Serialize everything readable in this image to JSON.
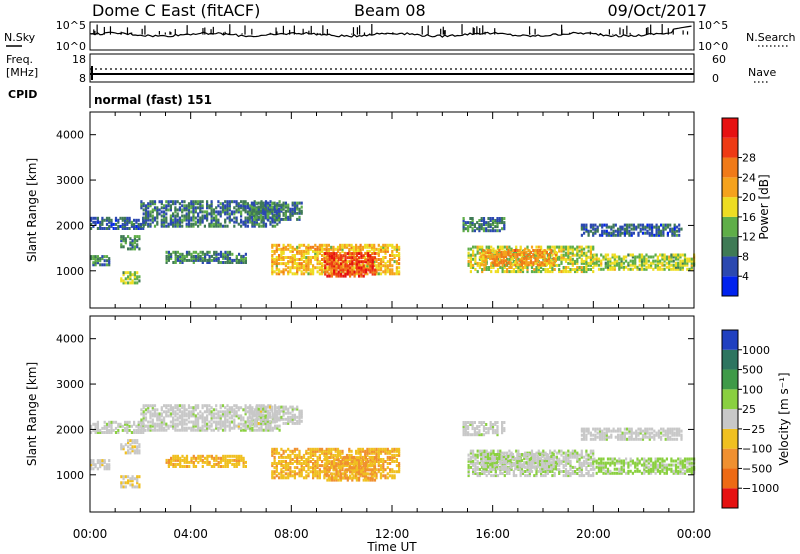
{
  "header": {
    "title": "Dome C East (fitACF)",
    "beam": "Beam 08",
    "date": "09/Oct/2017"
  },
  "nsky_panel": {
    "left_label": "N.Sky",
    "right_label": "N.Search",
    "left_ticks": [
      "10^5",
      "10^0"
    ],
    "right_ticks": [
      "10^5",
      "10^0"
    ]
  },
  "freq_panel": {
    "left_label_line1": "Freq.",
    "left_label_line2": "[MHz]",
    "right_label": "Nave",
    "left_ticks": [
      "18",
      "8"
    ],
    "right_ticks": [
      "60",
      "0"
    ]
  },
  "cpid_panel": {
    "label": "CPID",
    "value": "normal (fast) 151"
  },
  "x_axis": {
    "label": "Time UT",
    "ticks": [
      "00:00",
      "04:00",
      "08:00",
      "12:00",
      "16:00",
      "20:00",
      "00:00"
    ]
  },
  "y_axis": {
    "label": "Slant Range [km]",
    "ticks": [
      "1000",
      "2000",
      "3000",
      "4000"
    ]
  },
  "power_scale": {
    "label": "Power [dB]",
    "ticks": [
      "4",
      "8",
      "12",
      "16",
      "20",
      "24",
      "28"
    ],
    "colors": [
      "#0022ee",
      "#2b48b0",
      "#3f7a55",
      "#5fae48",
      "#eedd22",
      "#f5a21c",
      "#f07a18",
      "#ee3a14",
      "#e61111"
    ]
  },
  "velocity_scale": {
    "label": "Velocity [m s⁻¹]",
    "ticks": [
      "1000",
      "500",
      "100",
      "25",
      "−25",
      "−100",
      "−500",
      "−1000"
    ],
    "colors": [
      "#2040c0",
      "#2e7560",
      "#3f9a48",
      "#8ad040",
      "#c8c8c8",
      "#f0c020",
      "#f09030",
      "#ee6a14",
      "#e61111"
    ]
  },
  "chart_data": {
    "type": "heatmap",
    "x_range_hours": [
      0,
      24
    ],
    "y_range_km": [
      180,
      4500
    ],
    "power_db_range": [
      0,
      32
    ],
    "velocity_range": [
      -1200,
      1200
    ],
    "panels": [
      "Power [dB]",
      "Velocity [m s⁻¹]"
    ],
    "regions": [
      {
        "t0": 0.0,
        "t1": 2.2,
        "r0": 1900,
        "r1": 2150,
        "power": 7,
        "velocity": 20
      },
      {
        "t0": 1.2,
        "t1": 2.0,
        "r0": 1450,
        "r1": 1750,
        "power": 10,
        "velocity": -30
      },
      {
        "t0": 2.0,
        "t1": 7.5,
        "r0": 1950,
        "r1": 2500,
        "power": 8,
        "velocity": 15
      },
      {
        "t0": 0.0,
        "t1": 0.8,
        "r0": 1100,
        "r1": 1300,
        "power": 10,
        "velocity": -40
      },
      {
        "t0": 1.2,
        "t1": 2.0,
        "r0": 700,
        "r1": 950,
        "power": 14,
        "velocity": -150
      },
      {
        "t0": 3.0,
        "t1": 6.2,
        "r0": 1150,
        "r1": 1400,
        "power": 9,
        "velocity": -300
      },
      {
        "t0": 6.3,
        "t1": 8.4,
        "r0": 2100,
        "r1": 2500,
        "power": 9,
        "velocity": 10
      },
      {
        "t0": 7.2,
        "t1": 12.3,
        "r0": 900,
        "r1": 1550,
        "power": 18,
        "velocity": -350
      },
      {
        "t0": 9.3,
        "t1": 11.3,
        "r0": 850,
        "r1": 1350,
        "power": 27,
        "velocity": -400
      },
      {
        "t0": 15.0,
        "t1": 20.0,
        "r0": 950,
        "r1": 1500,
        "power": 15,
        "velocity": 80
      },
      {
        "t0": 15.5,
        "t1": 18.5,
        "r0": 1100,
        "r1": 1450,
        "power": 21,
        "velocity": 60
      },
      {
        "t0": 20.0,
        "t1": 24.0,
        "r0": 1000,
        "r1": 1350,
        "power": 14,
        "velocity": 200
      },
      {
        "t0": 19.5,
        "t1": 23.5,
        "r0": 1750,
        "r1": 2000,
        "power": 7,
        "velocity": 25
      },
      {
        "t0": 14.8,
        "t1": 16.5,
        "r0": 1850,
        "r1": 2150,
        "power": 8,
        "velocity": 20
      }
    ]
  }
}
